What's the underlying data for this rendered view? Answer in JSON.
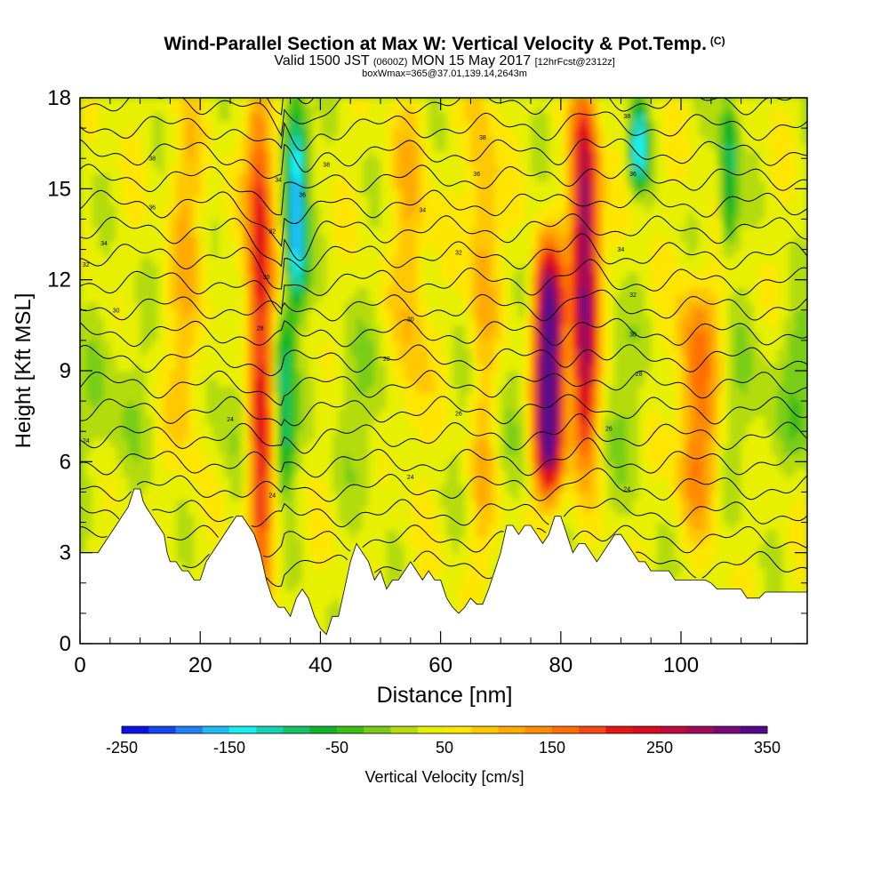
{
  "header": {
    "title": "Wind-Parallel Section at Max W: Vertical Velocity & Pot.Temp.",
    "title_mark": "(C)",
    "valid_prefix": "Valid 1500 JST",
    "valid_utc": "(0600Z)",
    "valid_date": "MON 15 May 2017",
    "forecast": "[12hrFcst@2312z]",
    "box_info": "boxWmax=365@37.01,139.14,2643m"
  },
  "chart_data": {
    "type": "heatmap",
    "xlabel": "Distance [nm]",
    "ylabel": "Height [Kft MSL]",
    "xlim": [
      0,
      121
    ],
    "ylim": [
      0,
      18
    ],
    "x_ticks": [
      0,
      20,
      40,
      60,
      80,
      100
    ],
    "x_tick_labels": [
      "0",
      "20",
      "40",
      "60",
      "80",
      "100"
    ],
    "y_ticks": [
      0,
      3,
      6,
      9,
      12,
      15,
      18
    ],
    "y_tick_labels": [
      "0",
      "3",
      "6",
      "9",
      "12",
      "15",
      "18"
    ],
    "colorbar": {
      "label": "Vertical Velocity [cm/s]",
      "min": -250,
      "max": 350,
      "step": 25,
      "tick_labels": [
        "-250",
        "-150",
        "-50",
        "50",
        "150",
        "250",
        "350"
      ],
      "colors": [
        "#0a14e6",
        "#1446f0",
        "#1e82f5",
        "#1ebef5",
        "#14f0f0",
        "#14d2b4",
        "#14c364",
        "#0fb428",
        "#3cbe14",
        "#78cd14",
        "#b4dc0a",
        "#e6f000",
        "#ffe600",
        "#ffc800",
        "#ffaa00",
        "#ff8c00",
        "#ff6e00",
        "#f54614",
        "#e61414",
        "#dc0a1e",
        "#be0a3c",
        "#a00a5a",
        "#780a78",
        "#550a8c"
      ]
    },
    "terrain_height_kft": [
      [
        0,
        3.0
      ],
      [
        3,
        3.0
      ],
      [
        4,
        3.3
      ],
      [
        5,
        3.6
      ],
      [
        6,
        3.9
      ],
      [
        7,
        4.2
      ],
      [
        8,
        4.5
      ],
      [
        9,
        5.1
      ],
      [
        10,
        5.1
      ],
      [
        10.5,
        4.7
      ],
      [
        11,
        4.5
      ],
      [
        12,
        4.2
      ],
      [
        13,
        3.9
      ],
      [
        14,
        3.6
      ],
      [
        14.5,
        3.0
      ],
      [
        15,
        2.7
      ],
      [
        16,
        2.7
      ],
      [
        17,
        2.4
      ],
      [
        18,
        2.4
      ],
      [
        19,
        2.1
      ],
      [
        20,
        2.1
      ],
      [
        21,
        2.7
      ],
      [
        22,
        3.0
      ],
      [
        23,
        3.3
      ],
      [
        24,
        3.6
      ],
      [
        25,
        3.9
      ],
      [
        26,
        4.2
      ],
      [
        27,
        4.2
      ],
      [
        28,
        3.9
      ],
      [
        29,
        3.6
      ],
      [
        30,
        3.0
      ],
      [
        31,
        2.1
      ],
      [
        32,
        1.5
      ],
      [
        33,
        1.2
      ],
      [
        34,
        1.2
      ],
      [
        35,
        0.9
      ],
      [
        36,
        1.5
      ],
      [
        37,
        1.8
      ],
      [
        38,
        1.5
      ],
      [
        39,
        0.9
      ],
      [
        40,
        0.5
      ],
      [
        41,
        0.3
      ],
      [
        42,
        0.9
      ],
      [
        43,
        0.9
      ],
      [
        44,
        1.8
      ],
      [
        45,
        2.7
      ],
      [
        46,
        3.3
      ],
      [
        47,
        3.0
      ],
      [
        48,
        2.7
      ],
      [
        49,
        2.1
      ],
      [
        50,
        2.4
      ],
      [
        51,
        1.8
      ],
      [
        52,
        2.1
      ],
      [
        53,
        2.1
      ],
      [
        54,
        2.4
      ],
      [
        55,
        2.7
      ],
      [
        56,
        2.4
      ],
      [
        57,
        2.1
      ],
      [
        58,
        2.4
      ],
      [
        59,
        2.1
      ],
      [
        60,
        2.1
      ],
      [
        61,
        1.5
      ],
      [
        62,
        1.2
      ],
      [
        63,
        1.0
      ],
      [
        64,
        1.2
      ],
      [
        65,
        1.5
      ],
      [
        66,
        1.3
      ],
      [
        67,
        1.3
      ],
      [
        68,
        1.8
      ],
      [
        69,
        2.4
      ],
      [
        70,
        3.0
      ],
      [
        71,
        3.9
      ],
      [
        72,
        3.9
      ],
      [
        73,
        3.6
      ],
      [
        74,
        3.9
      ],
      [
        75,
        3.9
      ],
      [
        76,
        3.6
      ],
      [
        77,
        3.3
      ],
      [
        78,
        3.6
      ],
      [
        79,
        4.2
      ],
      [
        80,
        4.2
      ],
      [
        81,
        3.6
      ],
      [
        82,
        3.0
      ],
      [
        83,
        3.3
      ],
      [
        84,
        3.3
      ],
      [
        85,
        3.0
      ],
      [
        86,
        2.7
      ],
      [
        87,
        3.0
      ],
      [
        88,
        3.3
      ],
      [
        89,
        3.6
      ],
      [
        90,
        3.6
      ],
      [
        91,
        3.3
      ],
      [
        92,
        3.0
      ],
      [
        93,
        2.7
      ],
      [
        94,
        2.7
      ],
      [
        95,
        2.4
      ],
      [
        96,
        2.4
      ],
      [
        97,
        2.4
      ],
      [
        98,
        2.4
      ],
      [
        99,
        2.1
      ],
      [
        100,
        2.1
      ],
      [
        101,
        2.1
      ],
      [
        102,
        2.1
      ],
      [
        103,
        2.1
      ],
      [
        104,
        2.1
      ],
      [
        105,
        2.0
      ],
      [
        106,
        1.8
      ],
      [
        107,
        1.8
      ],
      [
        108,
        1.8
      ],
      [
        109,
        1.8
      ],
      [
        110,
        1.8
      ],
      [
        111,
        1.5
      ],
      [
        112,
        1.5
      ],
      [
        113,
        1.5
      ],
      [
        114,
        1.7
      ],
      [
        115,
        1.7
      ],
      [
        116,
        1.7
      ],
      [
        121,
        1.7
      ]
    ],
    "updrafts": [
      {
        "x": 30,
        "y_min": 2,
        "y_max": 18,
        "peak_cms": 200,
        "width_nm": 2.2
      },
      {
        "x": 78,
        "y_min": 5,
        "y_max": 13,
        "peak_cms": 350,
        "width_nm": 2.4
      },
      {
        "x": 84,
        "y_min": 6,
        "y_max": 18,
        "peak_cms": 280,
        "width_nm": 2.2
      },
      {
        "x": 103,
        "y_min": 4,
        "y_max": 12,
        "peak_cms": 120,
        "width_nm": 3.5
      },
      {
        "x": 67,
        "y_min": 3,
        "y_max": 18,
        "peak_cms": 80,
        "width_nm": 2.5
      },
      {
        "x": 55,
        "y_min": 6,
        "y_max": 18,
        "peak_cms": 60,
        "width_nm": 3.0
      },
      {
        "x": 18,
        "y_min": 6,
        "y_max": 18,
        "peak_cms": 60,
        "width_nm": 3.0
      }
    ],
    "downdrafts": [
      {
        "x": 36,
        "y_min": 11,
        "y_max": 18,
        "peak_cms": -220,
        "width_nm": 1.8
      },
      {
        "x": 34,
        "y_min": 5,
        "y_max": 11,
        "peak_cms": -140,
        "width_nm": 1.8
      },
      {
        "x": 93,
        "y_min": 15,
        "y_max": 18,
        "peak_cms": -170,
        "width_nm": 1.5
      },
      {
        "x": 108,
        "y_min": 13,
        "y_max": 18,
        "peak_cms": -130,
        "width_nm": 1.5
      },
      {
        "x": 120,
        "y_min": 6,
        "y_max": 11,
        "peak_cms": -60,
        "width_nm": 3.0
      }
    ],
    "theta_contours": {
      "count": 22,
      "base_height_kft": 2.6,
      "interval_kft": 0.85,
      "annotations": [
        {
          "x": 12,
          "y": 16.0,
          "label": "38"
        },
        {
          "x": 12,
          "y": 14.4,
          "label": "36"
        },
        {
          "x": 4,
          "y": 13.2,
          "label": "34"
        },
        {
          "x": 1,
          "y": 12.5,
          "label": "32"
        },
        {
          "x": 6,
          "y": 11.0,
          "label": "30"
        },
        {
          "x": 1,
          "y": 6.7,
          "label": "24"
        },
        {
          "x": 25,
          "y": 7.4,
          "label": "24"
        },
        {
          "x": 32,
          "y": 4.9,
          "label": "24"
        },
        {
          "x": 30,
          "y": 10.4,
          "label": "28"
        },
        {
          "x": 31,
          "y": 12.1,
          "label": "30"
        },
        {
          "x": 32,
          "y": 13.6,
          "label": "32"
        },
        {
          "x": 33,
          "y": 15.3,
          "label": "34"
        },
        {
          "x": 37,
          "y": 14.8,
          "label": "36"
        },
        {
          "x": 41,
          "y": 15.8,
          "label": "38"
        },
        {
          "x": 51,
          "y": 9.4,
          "label": "28"
        },
        {
          "x": 55,
          "y": 10.7,
          "label": "30"
        },
        {
          "x": 57,
          "y": 14.3,
          "label": "34"
        },
        {
          "x": 55,
          "y": 5.5,
          "label": "24"
        },
        {
          "x": 63,
          "y": 7.6,
          "label": "26"
        },
        {
          "x": 63,
          "y": 12.9,
          "label": "32"
        },
        {
          "x": 66,
          "y": 15.5,
          "label": "36"
        },
        {
          "x": 67,
          "y": 16.7,
          "label": "38"
        },
        {
          "x": 91,
          "y": 5.1,
          "label": "24"
        },
        {
          "x": 88,
          "y": 7.1,
          "label": "26"
        },
        {
          "x": 93,
          "y": 8.9,
          "label": "28"
        },
        {
          "x": 92,
          "y": 10.2,
          "label": "30"
        },
        {
          "x": 92,
          "y": 11.5,
          "label": "32"
        },
        {
          "x": 90,
          "y": 13.0,
          "label": "34"
        },
        {
          "x": 92,
          "y": 15.5,
          "label": "36"
        },
        {
          "x": 91,
          "y": 17.4,
          "label": "38"
        }
      ]
    }
  }
}
